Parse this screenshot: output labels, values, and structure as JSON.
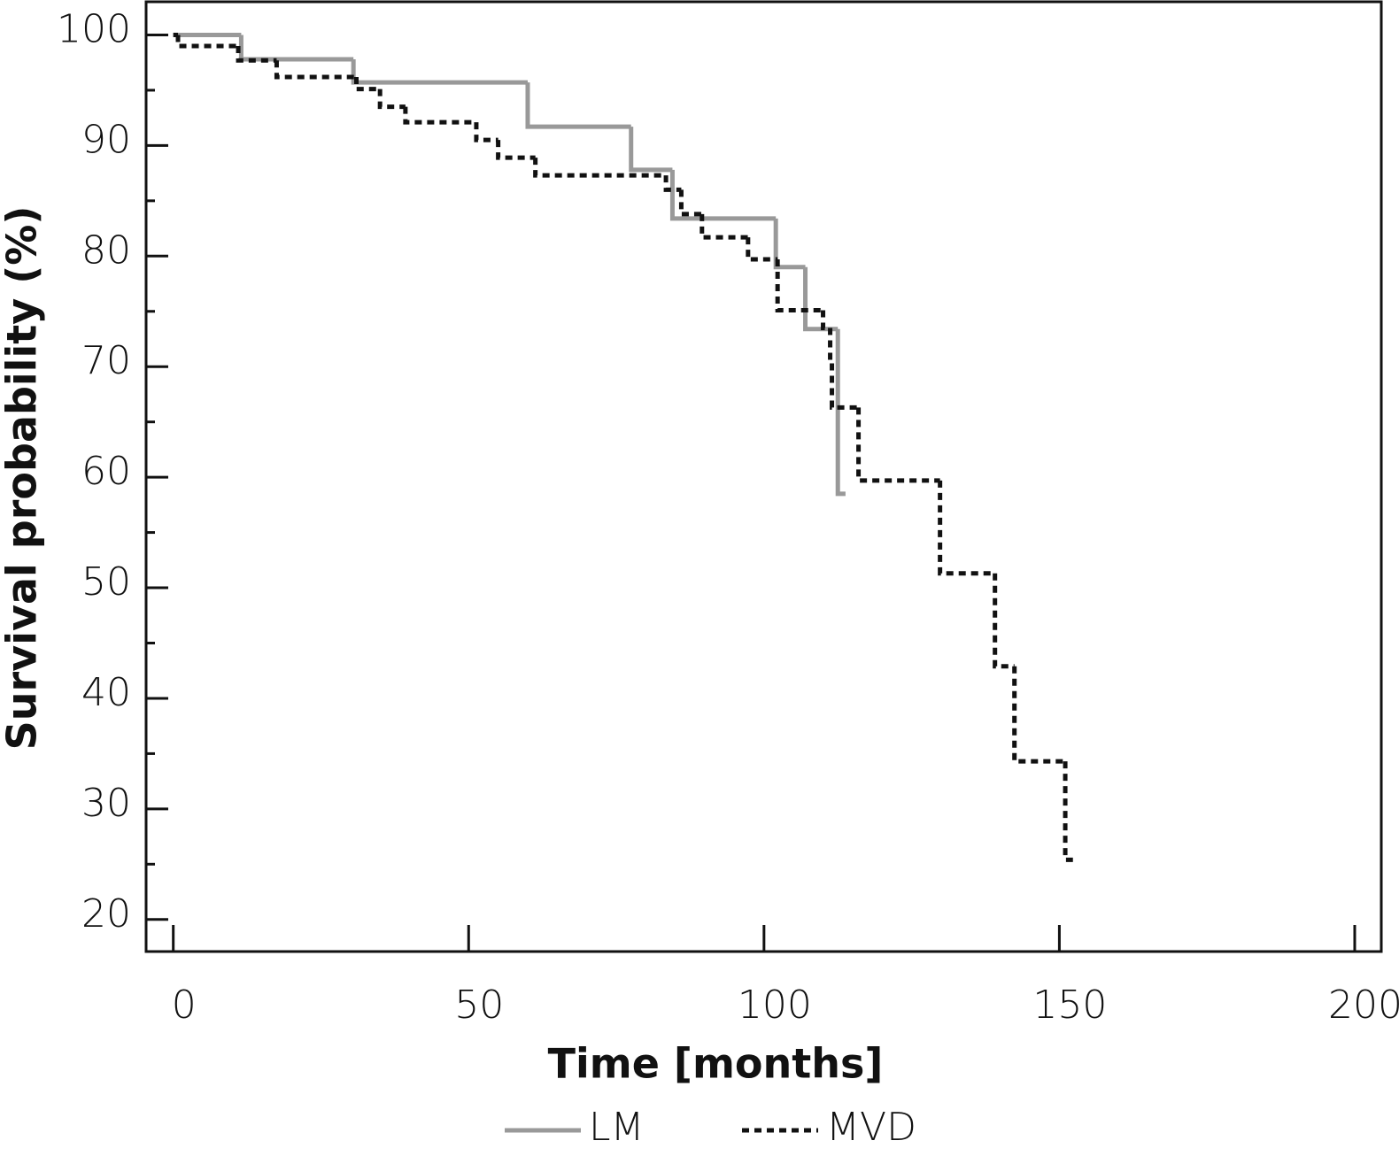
{
  "chart_data": {
    "type": "step",
    "xlabel": "Time [months]",
    "ylabel": "Survival probability (%)",
    "xlim": [
      -4.6,
      204.5
    ],
    "ylim": [
      17.1,
      103
    ],
    "xticks": [
      0,
      50,
      100,
      150,
      200
    ],
    "yticks": [
      20,
      30,
      40,
      50,
      60,
      70,
      80,
      90,
      100
    ],
    "yminorticks": [
      25,
      35,
      45,
      55,
      65,
      75,
      85,
      95
    ],
    "series": [
      {
        "name": "LM",
        "color": "#999999",
        "dash": "none",
        "x": [
          0,
          11.5,
          30.5,
          60,
          77.5,
          84.5,
          102,
          107,
          112.5,
          113.8
        ],
        "values": [
          100,
          97.8,
          95.7,
          91.7,
          87.8,
          83.4,
          79,
          73.4,
          58.5,
          58.5
        ]
      },
      {
        "name": "MVD",
        "color": "#111111",
        "dash": "8 6",
        "x": [
          0,
          0.8,
          11,
          17.5,
          31,
          35,
          39.3,
          51.3,
          55,
          61.3,
          83.4,
          86,
          89.5,
          97.3,
          102.3,
          110,
          111.2,
          111.5,
          116,
          129.8,
          139.1,
          142.4,
          151,
          152.3
        ],
        "values": [
          100,
          99,
          97.7,
          96.2,
          95.1,
          93.5,
          92.1,
          90.5,
          88.9,
          87.3,
          86,
          83.8,
          81.7,
          79.7,
          75.1,
          73.5,
          70.3,
          66.3,
          59.7,
          51.3,
          42.9,
          34.3,
          25.4,
          25.4
        ]
      }
    ]
  }
}
